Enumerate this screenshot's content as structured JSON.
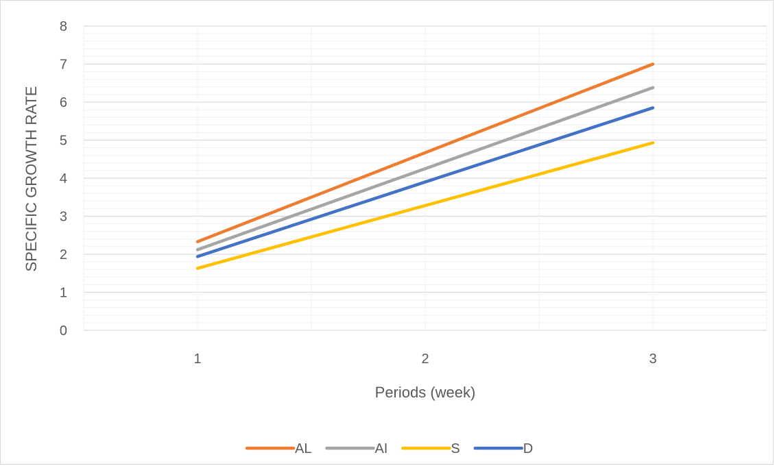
{
  "chart_data": {
    "type": "line",
    "title": "",
    "xlabel": "Periods (week)",
    "ylabel": "SPECIFIC GROWTH RATE",
    "x": [
      1,
      2,
      3
    ],
    "x_ticks": [
      "1",
      "2",
      "3"
    ],
    "y_ticks": [
      "0",
      "1",
      "2",
      "3",
      "4",
      "5",
      "6",
      "7",
      "8"
    ],
    "xlim": [
      0.5,
      3.5
    ],
    "ylim": [
      0,
      8
    ],
    "grid": "major and minor gridlines",
    "legend": "bottom-center",
    "series": [
      {
        "name": "AL",
        "color": "#ED7D31",
        "values": [
          2.33,
          4.67,
          7.0
        ]
      },
      {
        "name": "AI",
        "color": "#A5A5A5",
        "values": [
          2.12,
          4.25,
          6.38
        ]
      },
      {
        "name": "S",
        "color": "#FFC000",
        "values": [
          1.63,
          3.28,
          4.93
        ]
      },
      {
        "name": "D",
        "color": "#4472C4",
        "values": [
          1.94,
          3.9,
          5.85
        ]
      }
    ]
  }
}
